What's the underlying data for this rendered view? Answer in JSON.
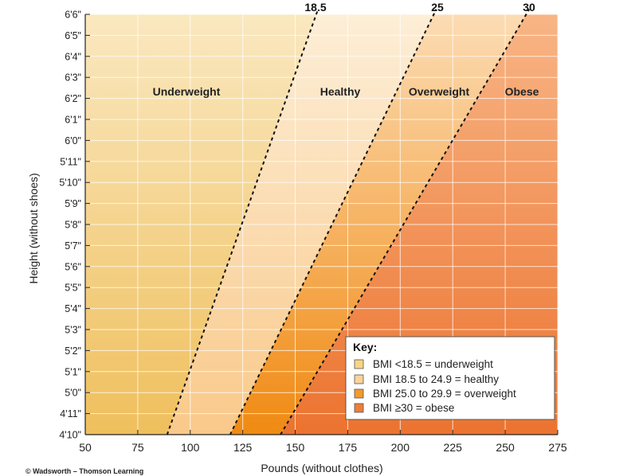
{
  "chart_data": {
    "type": "area",
    "xlabel": "Pounds (without clothes)",
    "ylabel": "Height (without shoes)",
    "xlim": [
      50,
      275
    ],
    "x_ticks": [
      50,
      75,
      100,
      125,
      150,
      175,
      200,
      225,
      250,
      275
    ],
    "y_inches_min": 58,
    "y_inches_max": 78,
    "y_ticks": [
      "4'10\"",
      "4'11\"",
      "5'0\"",
      "5'1\"",
      "5'2\"",
      "5'3\"",
      "5'4\"",
      "5'5\"",
      "5'6\"",
      "5'7\"",
      "5'8\"",
      "5'9\"",
      "5'10\"",
      "5'11\"",
      "6'0\"",
      "6'1\"",
      "6'2\"",
      "6'3\"",
      "6'4\"",
      "6'5\"",
      "6'6\""
    ],
    "grid": true,
    "boundaries": [
      {
        "label": "18.5",
        "bmi": 18.5,
        "points": [
          [
            89,
            58
          ],
          [
            160,
            78
          ]
        ]
      },
      {
        "label": "25",
        "bmi": 25,
        "points": [
          [
            119,
            58
          ],
          [
            216,
            78
          ]
        ]
      },
      {
        "label": "30",
        "bmi": 30,
        "points": [
          [
            143,
            58
          ],
          [
            260,
            78
          ]
        ]
      }
    ],
    "regions": [
      {
        "label": "Underweight",
        "color": "#f5cb70"
      },
      {
        "label": "Healthy",
        "color": "#fbd59a"
      },
      {
        "label": "Overweight",
        "color": "#f18c1c"
      },
      {
        "label": "Obese",
        "color": "#ee7a36"
      }
    ],
    "key": {
      "title": "Key:",
      "items": [
        {
          "text": "BMI <18.5 = underweight",
          "color": "#f6d585"
        },
        {
          "text": "BMI 18.5 to 24.9 = healthy",
          "color": "#fbd39c"
        },
        {
          "text": "BMI 25.0 to 29.9 = overweight",
          "color": "#f39a2c"
        },
        {
          "text": "BMI ≥30 = obese",
          "color": "#ee7d3b"
        }
      ]
    }
  },
  "credit": "© Wadsworth – Thomson Learning"
}
